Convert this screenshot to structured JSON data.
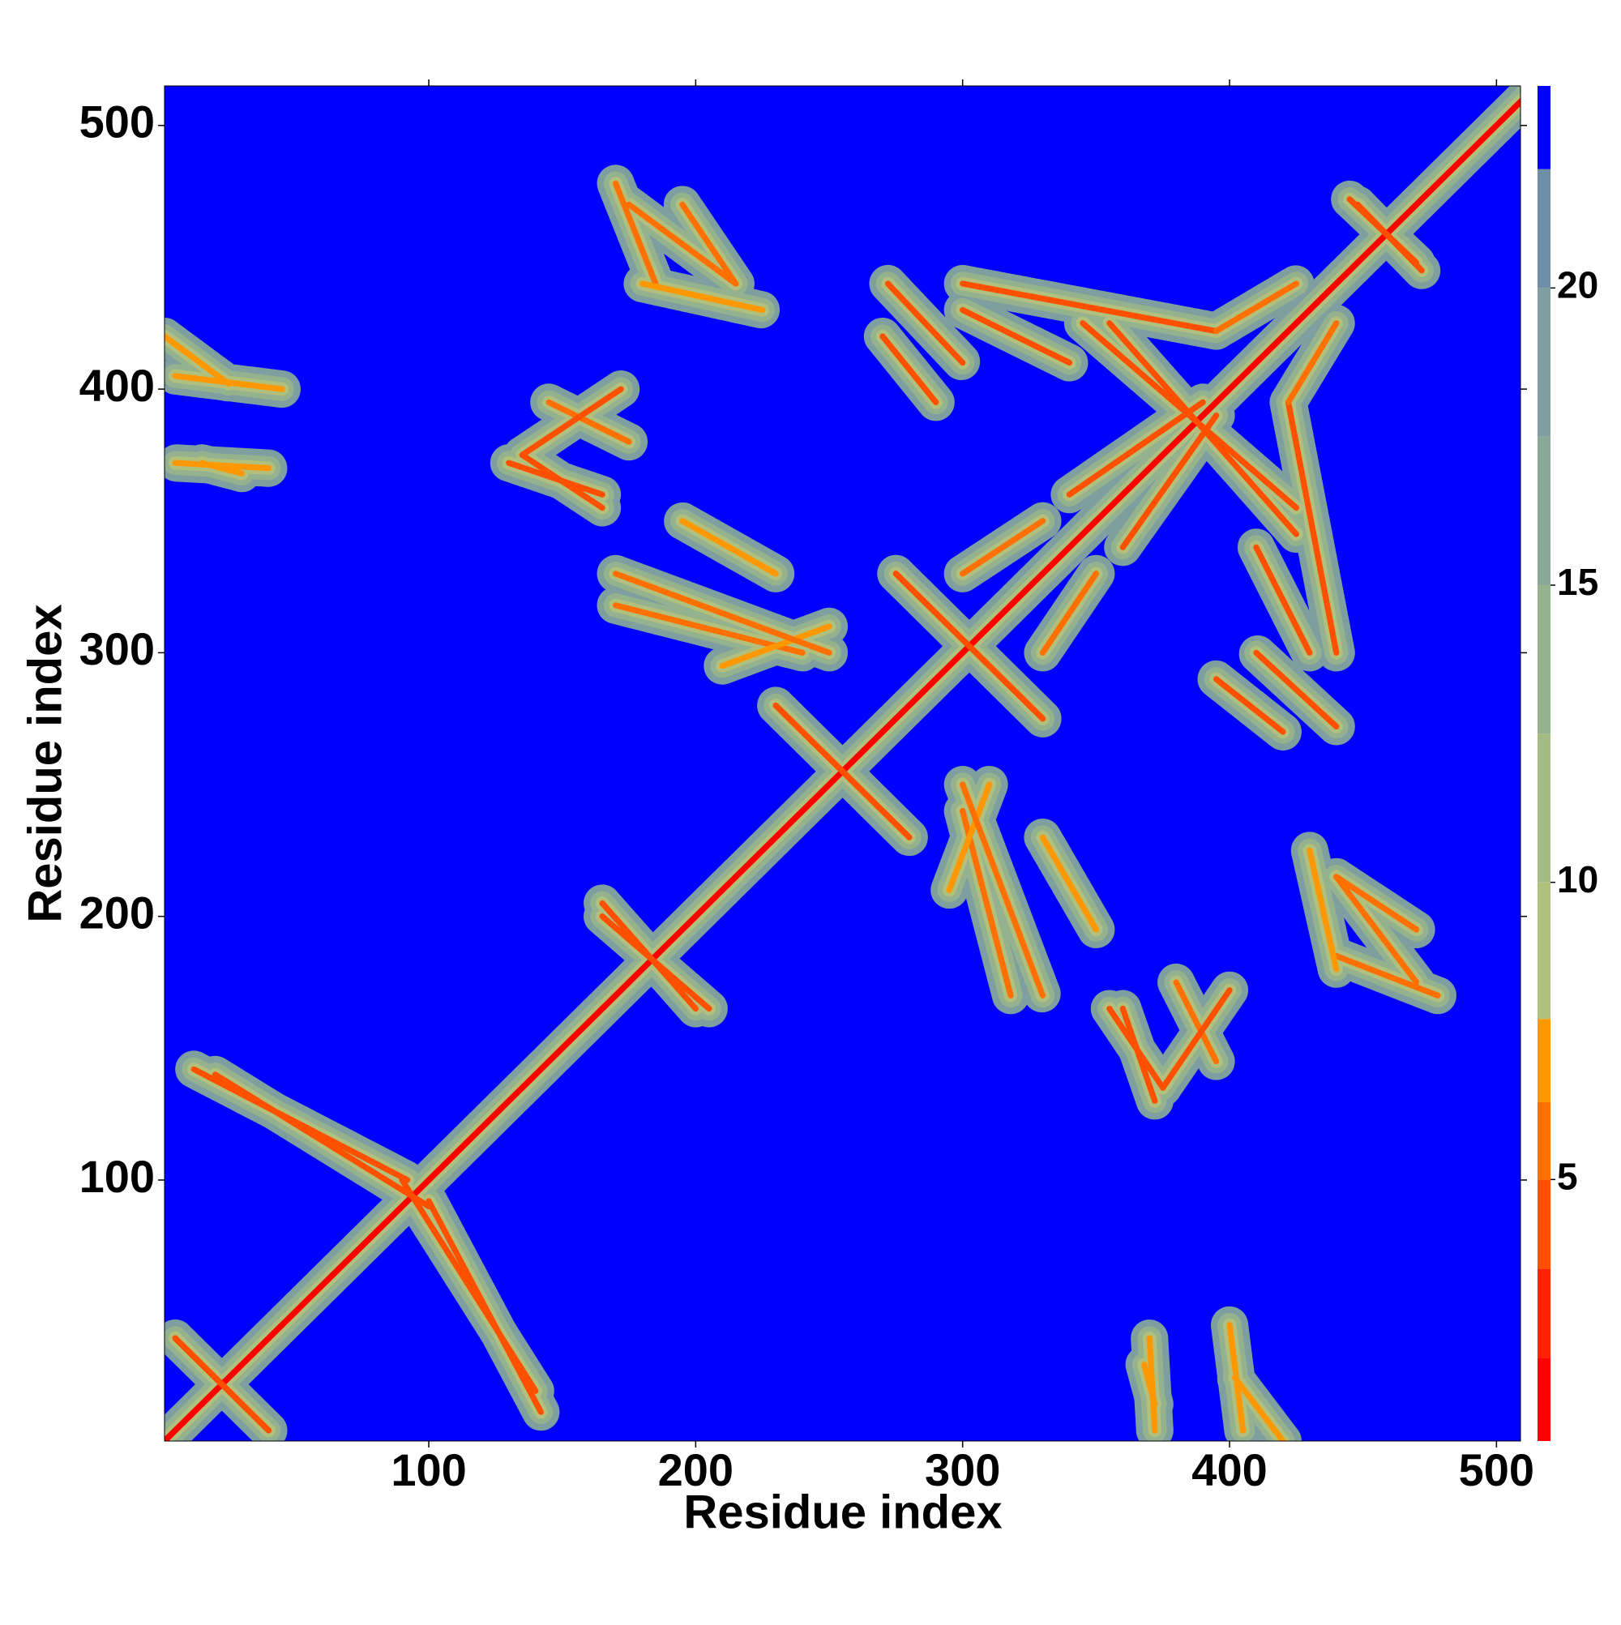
{
  "chart_data": {
    "type": "contact_map",
    "xlabel": "Residue index",
    "ylabel": "Residue index",
    "xlim": [
      1,
      509
    ],
    "ylim": [
      1,
      515
    ],
    "xticks": [
      100,
      200,
      300,
      400,
      500
    ],
    "yticks": [
      100,
      200,
      300,
      400,
      500
    ],
    "symmetric": true,
    "colorbar": {
      "clim": [
        0.6,
        23.4
      ],
      "ticks": [
        5,
        10,
        15,
        20
      ],
      "levels": [
        0.6,
        2,
        3.5,
        5,
        6.3,
        7.7,
        10,
        12.5,
        15,
        17.5,
        20,
        22,
        23.4
      ],
      "colors": [
        "#ff0000",
        "#ff2200",
        "#ff5000",
        "#ff7000",
        "#ff9800",
        "#b2c07e",
        "#a4bb86",
        "#95b28e",
        "#8aa996",
        "#7e9ea0",
        "#6f8fa9",
        "#0000ff"
      ]
    },
    "contacts": [
      {
        "x": [
          1,
          512
        ],
        "y": [
          1,
          512
        ],
        "value": 1
      },
      {
        "x": [
          12,
          92
        ],
        "y": [
          142,
          100
        ],
        "value": 5
      },
      {
        "x": [
          90,
          140
        ],
        "y": [
          100,
          20
        ],
        "value": 5
      },
      {
        "x": [
          5,
          40
        ],
        "y": [
          40,
          5
        ],
        "value": 5
      },
      {
        "x": [
          165,
          200
        ],
        "y": [
          205,
          165
        ],
        "value": 5
      },
      {
        "x": [
          230,
          280
        ],
        "y": [
          280,
          230
        ],
        "value": 4
      },
      {
        "x": [
          275,
          330
        ],
        "y": [
          330,
          275
        ],
        "value": 4
      },
      {
        "x": [
          345,
          425
        ],
        "y": [
          425,
          355
        ],
        "value": 4
      },
      {
        "x": [
          445,
          470
        ],
        "y": [
          472,
          448
        ],
        "value": 5
      },
      {
        "x": [
          170,
          185
        ],
        "y": [
          478,
          440
        ],
        "value": 6
      },
      {
        "x": [
          195,
          215
        ],
        "y": [
          470,
          440
        ],
        "value": 6
      },
      {
        "x": [
          180,
          225
        ],
        "y": [
          440,
          430
        ],
        "value": 7
      },
      {
        "x": [
          130,
          165
        ],
        "y": [
          372,
          360
        ],
        "value": 5
      },
      {
        "x": [
          145,
          175
        ],
        "y": [
          395,
          380
        ],
        "value": 6
      },
      {
        "x": [
          170,
          240
        ],
        "y": [
          318,
          300
        ],
        "value": 6
      },
      {
        "x": [
          210,
          250
        ],
        "y": [
          295,
          310
        ],
        "value": 7
      },
      {
        "x": [
          272,
          300
        ],
        "y": [
          440,
          410
        ],
        "value": 5
      },
      {
        "x": [
          300,
          395
        ],
        "y": [
          440,
          422
        ],
        "value": 5
      },
      {
        "x": [
          395,
          425
        ],
        "y": [
          422,
          440
        ],
        "value": 6
      },
      {
        "x": [
          300,
          330
        ],
        "y": [
          330,
          350
        ],
        "value": 6
      },
      {
        "x": [
          340,
          390
        ],
        "y": [
          360,
          395
        ],
        "value": 5
      },
      {
        "x": [
          300,
          330
        ],
        "y": [
          250,
          170
        ],
        "value": 6
      },
      {
        "x": [
          330,
          350
        ],
        "y": [
          230,
          195
        ],
        "value": 7
      },
      {
        "x": [
          355,
          375
        ],
        "y": [
          165,
          135
        ],
        "value": 5
      },
      {
        "x": [
          375,
          400
        ],
        "y": [
          135,
          172
        ],
        "value": 5
      },
      {
        "x": [
          440,
          470
        ],
        "y": [
          215,
          175
        ],
        "value": 6
      },
      {
        "x": [
          410,
          430
        ],
        "y": [
          340,
          300
        ],
        "value": 5
      },
      {
        "x": [
          395,
          420
        ],
        "y": [
          290,
          270
        ],
        "value": 5
      },
      {
        "x": [
          1,
          25
        ],
        "y": [
          420,
          402
        ],
        "value": 7
      },
      {
        "x": [
          15,
          30
        ],
        "y": [
          372,
          368
        ],
        "value": 7
      },
      {
        "x": [
          370,
          372
        ],
        "y": [
          40,
          5
        ],
        "value": 7
      },
      {
        "x": [
          400,
          405
        ],
        "y": [
          45,
          5
        ],
        "value": 7
      }
    ]
  }
}
